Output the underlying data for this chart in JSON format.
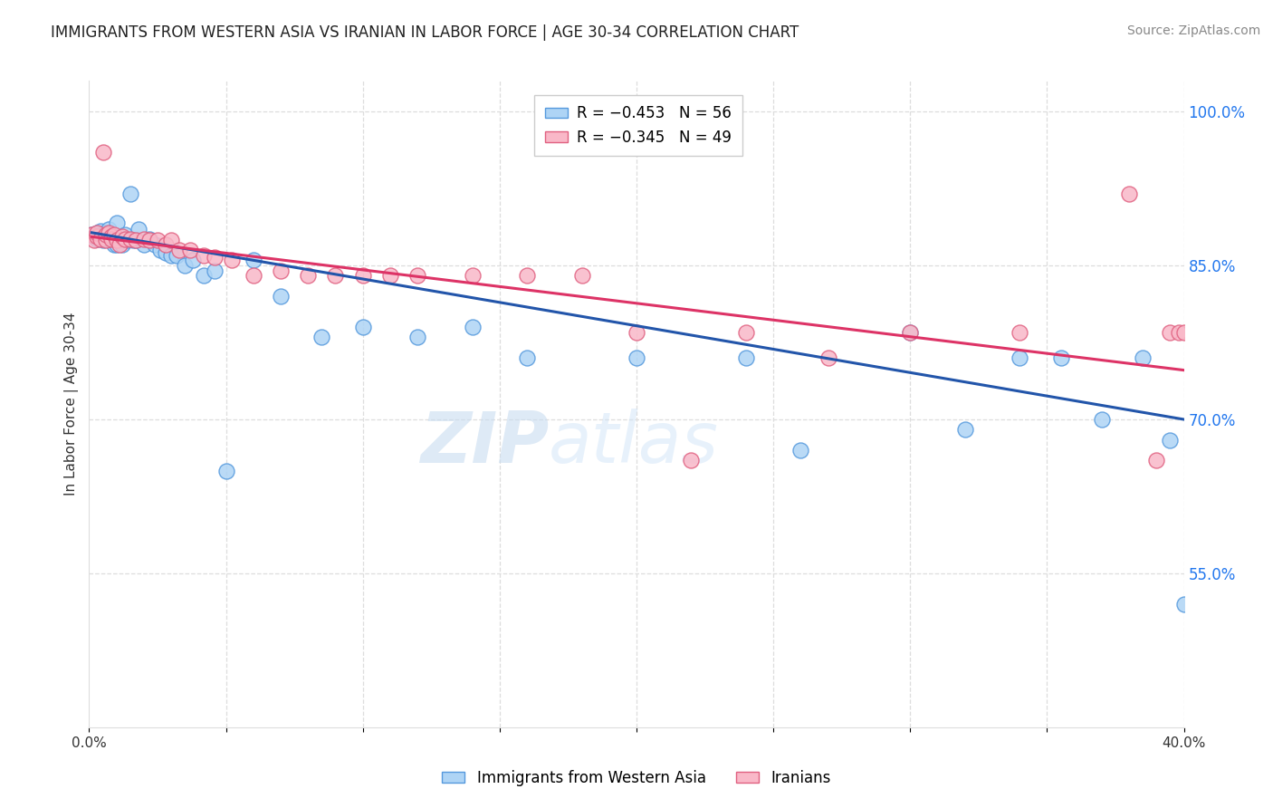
{
  "title": "IMMIGRANTS FROM WESTERN ASIA VS IRANIAN IN LABOR FORCE | AGE 30-34 CORRELATION CHART",
  "source": "Source: ZipAtlas.com",
  "ylabel": "In Labor Force | Age 30-34",
  "xlim": [
    0.0,
    0.4
  ],
  "ylim": [
    0.4,
    1.03
  ],
  "xticks": [
    0.0,
    0.05,
    0.1,
    0.15,
    0.2,
    0.25,
    0.3,
    0.35,
    0.4
  ],
  "xticklabels": [
    "0.0%",
    "",
    "",
    "",
    "",
    "",
    "",
    "",
    "40.0%"
  ],
  "yticks_right": [
    0.55,
    0.7,
    0.85,
    1.0
  ],
  "ytick_labels_right": [
    "55.0%",
    "70.0%",
    "85.0%",
    "100.0%"
  ],
  "blue_fill": "#AED4F5",
  "blue_edge": "#5599DD",
  "pink_fill": "#F9B8C8",
  "pink_edge": "#E06080",
  "blue_line_color": "#2255AA",
  "pink_line_color": "#DD3366",
  "legend_R_blue": "R = −0.453",
  "legend_N_blue": "N = 56",
  "legend_R_pink": "R = −0.345",
  "legend_N_pink": "N = 49",
  "legend_label_blue": "Immigrants from Western Asia",
  "legend_label_pink": "Iranians",
  "watermark": "ZIPatlas",
  "blue_x": [
    0.001,
    0.002,
    0.003,
    0.003,
    0.004,
    0.004,
    0.005,
    0.005,
    0.006,
    0.006,
    0.007,
    0.007,
    0.008,
    0.008,
    0.009,
    0.009,
    0.01,
    0.01,
    0.011,
    0.012,
    0.013,
    0.014,
    0.015,
    0.016,
    0.017,
    0.018,
    0.02,
    0.022,
    0.024,
    0.026,
    0.028,
    0.03,
    0.032,
    0.035,
    0.038,
    0.042,
    0.046,
    0.05,
    0.06,
    0.07,
    0.085,
    0.1,
    0.12,
    0.14,
    0.16,
    0.2,
    0.24,
    0.26,
    0.3,
    0.32,
    0.34,
    0.355,
    0.37,
    0.385,
    0.395,
    0.4
  ],
  "blue_y": [
    0.88,
    0.878,
    0.882,
    0.876,
    0.884,
    0.88,
    0.878,
    0.875,
    0.882,
    0.876,
    0.885,
    0.878,
    0.88,
    0.875,
    0.878,
    0.87,
    0.892,
    0.87,
    0.875,
    0.87,
    0.88,
    0.875,
    0.92,
    0.875,
    0.875,
    0.885,
    0.87,
    0.876,
    0.87,
    0.865,
    0.862,
    0.86,
    0.86,
    0.85,
    0.855,
    0.84,
    0.845,
    0.65,
    0.855,
    0.82,
    0.78,
    0.79,
    0.78,
    0.79,
    0.76,
    0.76,
    0.76,
    0.67,
    0.785,
    0.69,
    0.76,
    0.76,
    0.7,
    0.76,
    0.68,
    0.52
  ],
  "pink_x": [
    0.001,
    0.002,
    0.003,
    0.003,
    0.004,
    0.005,
    0.006,
    0.006,
    0.007,
    0.008,
    0.008,
    0.009,
    0.01,
    0.011,
    0.012,
    0.013,
    0.015,
    0.017,
    0.02,
    0.022,
    0.025,
    0.028,
    0.03,
    0.033,
    0.037,
    0.042,
    0.046,
    0.052,
    0.06,
    0.07,
    0.08,
    0.09,
    0.1,
    0.11,
    0.12,
    0.14,
    0.16,
    0.18,
    0.2,
    0.22,
    0.24,
    0.27,
    0.3,
    0.34,
    0.38,
    0.39,
    0.395,
    0.398,
    0.4
  ],
  "pink_y": [
    0.88,
    0.875,
    0.878,
    0.882,
    0.876,
    0.96,
    0.875,
    0.88,
    0.882,
    0.878,
    0.876,
    0.88,
    0.875,
    0.87,
    0.878,
    0.876,
    0.876,
    0.875,
    0.876,
    0.875,
    0.875,
    0.87,
    0.875,
    0.865,
    0.865,
    0.86,
    0.858,
    0.855,
    0.84,
    0.845,
    0.84,
    0.84,
    0.84,
    0.84,
    0.84,
    0.84,
    0.84,
    0.84,
    0.785,
    0.66,
    0.785,
    0.76,
    0.785,
    0.785,
    0.92,
    0.66,
    0.785,
    0.785,
    0.785
  ]
}
